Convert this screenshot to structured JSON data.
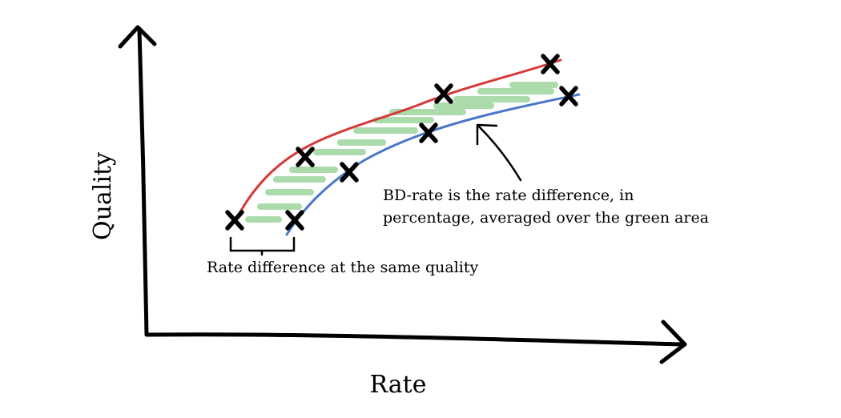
{
  "axes": {
    "x_label": "Rate",
    "y_label": "Quality"
  },
  "annotations": {
    "rate_difference": "Rate difference at the same quality",
    "bd_rate_line1": "BD-rate is the rate difference, in",
    "bd_rate_line2": "percentage, averaged over the green area"
  },
  "colors": {
    "red_curve": "#d63a3a",
    "blue_curve": "#4a78c8",
    "fill_area": "#8fd08f",
    "ink": "#000000"
  }
}
